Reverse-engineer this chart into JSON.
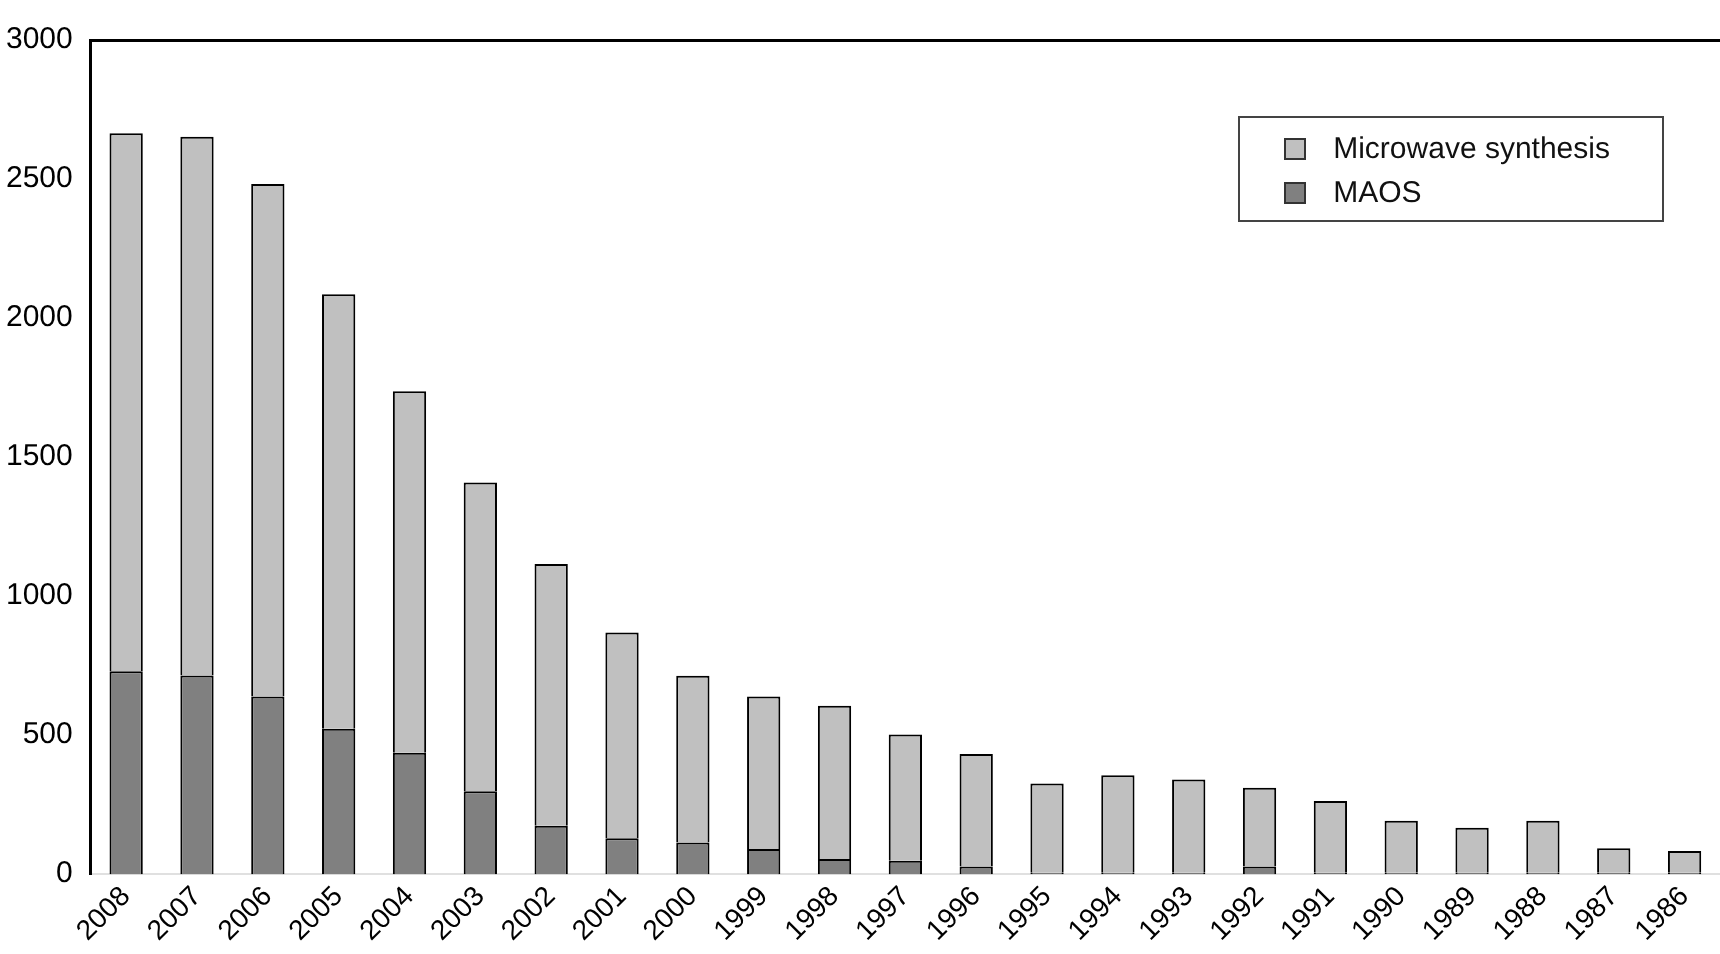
{
  "chart_data": {
    "type": "bar",
    "stacked": true,
    "categories": [
      "2008",
      "2007",
      "2006",
      "2005",
      "2004",
      "2003",
      "2002",
      "2001",
      "2000",
      "1999",
      "1998",
      "1997",
      "1996",
      "1995",
      "1994",
      "1993",
      "1992",
      "1991",
      "1990",
      "1989",
      "1988",
      "1987",
      "1986"
    ],
    "series": [
      {
        "name": "MAOS",
        "color": "#808080",
        "values": [
          730,
          715,
          639,
          523,
          437,
          298,
          174,
          129,
          114,
          91,
          55,
          48,
          28,
          5,
          5,
          5,
          28,
          5,
          5,
          5,
          5,
          5,
          5
        ]
      },
      {
        "name": "Microwave synthesis",
        "color": "#c0c0c0",
        "values": [
          1935,
          1937,
          1843,
          1563,
          1300,
          1111,
          942,
          740,
          600,
          548,
          551,
          454,
          404,
          321,
          351,
          336,
          283,
          258,
          187,
          162,
          187,
          88,
          78
        ]
      }
    ],
    "ylim": [
      0,
      3000
    ],
    "yticks": [
      0,
      500,
      1000,
      1500,
      2000,
      2500,
      3000
    ],
    "grid": false,
    "legend": "top right"
  }
}
